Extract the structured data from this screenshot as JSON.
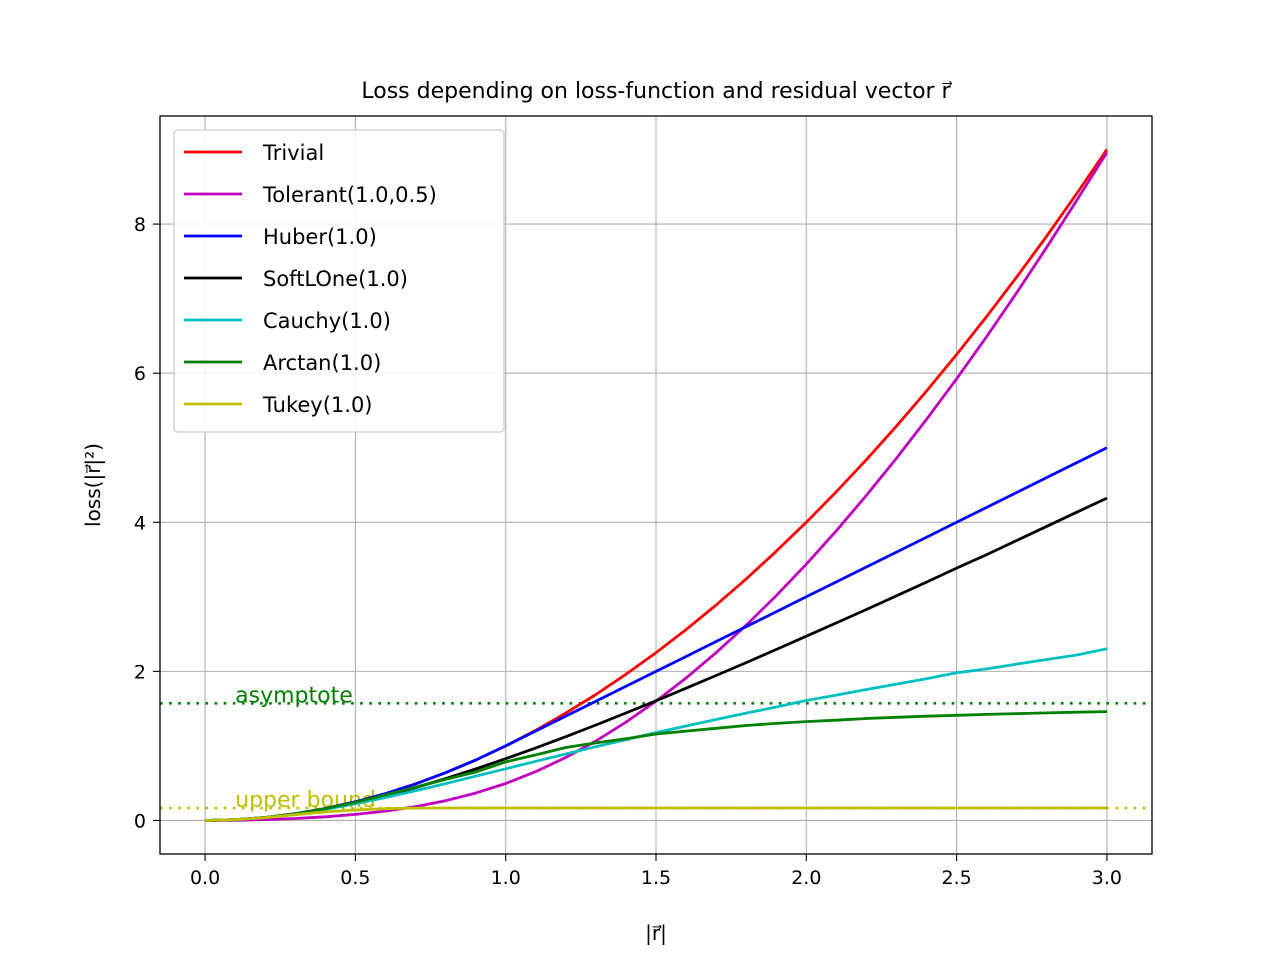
{
  "chart_data": {
    "type": "line",
    "title": "Loss depending on loss-function and residual vector r⃗",
    "xlabel": "|r⃗|",
    "ylabel": "loss(|r⃗|²)",
    "xlim": [
      -0.15,
      3.15
    ],
    "ylim": [
      -0.45,
      9.45
    ],
    "xticks": [
      0.0,
      0.5,
      1.0,
      1.5,
      2.0,
      2.5,
      3.0
    ],
    "xtick_labels": [
      "0.0",
      "0.5",
      "1.0",
      "1.5",
      "2.0",
      "2.5",
      "3.0"
    ],
    "yticks": [
      0,
      2,
      4,
      6,
      8
    ],
    "ytick_labels": [
      "0",
      "2",
      "4",
      "6",
      "8"
    ],
    "grid": true,
    "legend_position": "upper-left",
    "x": [
      0.0,
      0.1,
      0.2,
      0.3,
      0.4,
      0.5,
      0.6,
      0.7,
      0.8,
      0.9,
      1.0,
      1.1,
      1.2,
      1.3,
      1.4,
      1.5,
      1.6,
      1.7,
      1.8,
      1.9,
      2.0,
      2.1,
      2.2,
      2.3,
      2.4,
      2.5,
      2.6,
      2.7,
      2.8,
      2.9,
      3.0
    ],
    "series": [
      {
        "name": "Trivial",
        "color": "#ff0000",
        "values": [
          0,
          0.01,
          0.04,
          0.09,
          0.16,
          0.25,
          0.36,
          0.49,
          0.64,
          0.81,
          1.0,
          1.21,
          1.44,
          1.69,
          1.96,
          2.25,
          2.56,
          2.89,
          3.24,
          3.61,
          4.0,
          4.41,
          4.84,
          5.29,
          5.76,
          6.25,
          6.76,
          7.29,
          7.84,
          8.41,
          9.0
        ]
      },
      {
        "name": "Tolerant(1.0,0.5)",
        "color": "#bf00bf",
        "values": [
          0,
          0.0027,
          0.0113,
          0.0265,
          0.0494,
          0.0818,
          0.126,
          0.186,
          0.265,
          0.367,
          0.496,
          0.655,
          0.845,
          1.066,
          1.318,
          1.6,
          1.911,
          2.251,
          2.619,
          3.015,
          3.438,
          3.887,
          4.361,
          4.859,
          5.38,
          5.924,
          6.491,
          7.08,
          7.69,
          8.32,
          8.96
        ]
      },
      {
        "name": "Huber(1.0)",
        "color": "#0000ff",
        "values": [
          0,
          0.01,
          0.04,
          0.09,
          0.16,
          0.25,
          0.36,
          0.49,
          0.64,
          0.81,
          1.0,
          1.2,
          1.4,
          1.6,
          1.8,
          2.0,
          2.2,
          2.4,
          2.6,
          2.8,
          3.0,
          3.2,
          3.4,
          3.6,
          3.8,
          4.0,
          4.2,
          4.4,
          4.6,
          4.8,
          5.0
        ]
      },
      {
        "name": "SoftLOne(1.0)",
        "color": "#000000",
        "values": [
          0,
          0.01,
          0.0396,
          0.0881,
          0.1541,
          0.2361,
          0.3324,
          0.4413,
          0.5613,
          0.6907,
          0.8284,
          0.973,
          1.1241,
          1.2803,
          1.441,
          1.6056,
          1.7736,
          1.9443,
          2.1176,
          2.2929,
          2.4721,
          2.6495,
          2.8305,
          3.0132,
          3.1969,
          3.3852,
          3.567,
          3.7561,
          3.9457,
          4.1357,
          4.3246
        ]
      },
      {
        "name": "Cauchy(1.0)",
        "color": "#00bfbf",
        "values": [
          0,
          0.01,
          0.0392,
          0.0862,
          0.1484,
          0.2231,
          0.3075,
          0.3987,
          0.4947,
          0.5933,
          0.6931,
          0.7929,
          0.8916,
          0.9888,
          1.0839,
          1.1787,
          1.2669,
          1.3547,
          1.4398,
          1.5215,
          1.6094,
          1.6818,
          1.7568,
          1.8294,
          1.8997,
          1.9809,
          2.0333,
          2.0972,
          2.1592,
          2.2196,
          2.3026
        ]
      },
      {
        "name": "Arctan(1.0)",
        "color": "#008000",
        "values": [
          0,
          0.01,
          0.04,
          0.0897,
          0.1587,
          0.2449,
          0.3425,
          0.4473,
          0.5507,
          0.6505,
          0.7854,
          0.8798,
          0.9785,
          1.0403,
          1.0964,
          1.1593,
          1.1991,
          1.2361,
          1.2743,
          1.3014,
          1.3258,
          1.3454,
          1.3674,
          1.3832,
          1.3982,
          1.4109,
          1.4231,
          1.4338,
          1.4431,
          1.4521,
          1.4601
        ]
      },
      {
        "name": "Tukey(1.0)",
        "color": "#bfbf00",
        "values": [
          0,
          0.0099,
          0.0376,
          0.0776,
          0.1146,
          0.1406,
          0.1583,
          0.1654,
          0.1666,
          0.1667,
          0.1667,
          0.1667,
          0.1667,
          0.1667,
          0.1667,
          0.1667,
          0.1667,
          0.1667,
          0.1667,
          0.1667,
          0.1667,
          0.1667,
          0.1667,
          0.1667,
          0.1667,
          0.1667,
          0.1667,
          0.1667,
          0.1667,
          0.1667,
          0.1667
        ]
      }
    ],
    "reference_lines": [
      {
        "label": "asymptote",
        "y": 1.5708,
        "color": "#008000",
        "label_x": 0.1
      },
      {
        "label": "upper bound",
        "y": 0.1667,
        "color": "#bfbf00",
        "label_x": 0.1
      }
    ]
  }
}
